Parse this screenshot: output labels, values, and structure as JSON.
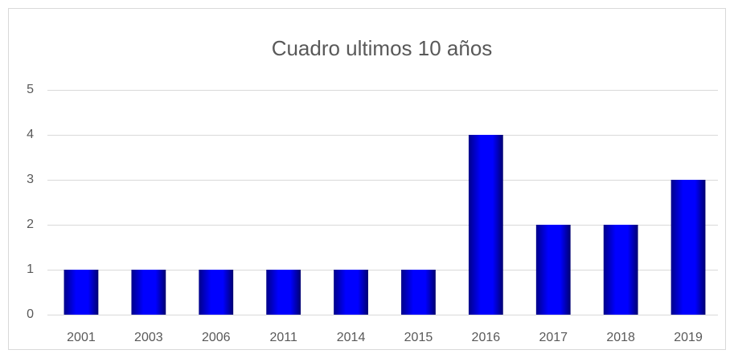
{
  "chart_data": {
    "type": "bar",
    "title": "Cuadro ultimos 10 años",
    "categories": [
      "2001",
      "2003",
      "2006",
      "2011",
      "2014",
      "2015",
      "2016",
      "2017",
      "2018",
      "2019"
    ],
    "values": [
      1,
      1,
      1,
      1,
      1,
      1,
      4,
      2,
      2,
      3
    ],
    "color": "#0000ff",
    "ylim": [
      0,
      5
    ],
    "yticks": [
      0,
      1,
      2,
      3,
      4,
      5
    ],
    "grid": true
  }
}
